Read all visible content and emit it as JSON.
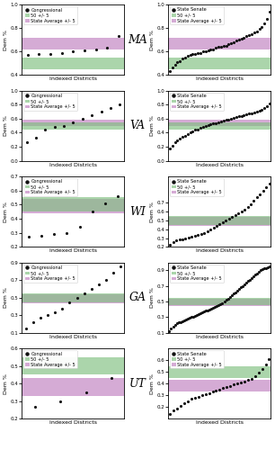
{
  "chart_data": [
    {
      "type": "scatter",
      "xlabel": "Indexed Districts",
      "ylabel": "Dem %",
      "annotations": [
        "MA"
      ],
      "x": [
        1,
        2,
        3,
        4,
        5,
        6,
        7,
        8,
        9
      ],
      "series": [
        {
          "name": "Congressional",
          "color": "#111111",
          "values": [
            0.57,
            0.58,
            0.58,
            0.59,
            0.6,
            0.61,
            0.62,
            0.63,
            0.73
          ]
        }
      ],
      "bands": [
        {
          "name": "50 +/- 5",
          "from": 0.45,
          "to": 0.55,
          "color": "#7fbf7f"
        },
        {
          "name": "State Average +/- 5",
          "from": 0.62,
          "to": 0.72,
          "color": "#bf7fbf"
        }
      ],
      "xlim": [
        0.5,
        9.5
      ],
      "ylim": [
        0.4,
        1.0
      ],
      "yticks": [
        0.4,
        0.6,
        0.8,
        {
          "value": 1,
          "label": "1.0"
        }
      ],
      "legend": "upper left",
      "tick_labels": "y"
    },
    {
      "type": "scatter",
      "xlabel": "Indexed Districts",
      "ylabel": "Dem %",
      "x": [
        1,
        2,
        3,
        4,
        5,
        6,
        7,
        8,
        9,
        10,
        11,
        12,
        13,
        14,
        15,
        16,
        17,
        18,
        19,
        20,
        21,
        22,
        23,
        24,
        25,
        26,
        27,
        28,
        29,
        30,
        31,
        32,
        33,
        34,
        35,
        36,
        37,
        38,
        39,
        40
      ],
      "series": [
        {
          "name": "State Senate",
          "color": "#111111",
          "values": [
            0.43,
            0.46,
            0.49,
            0.51,
            0.52,
            0.54,
            0.55,
            0.56,
            0.57,
            0.58,
            0.58,
            0.59,
            0.59,
            0.6,
            0.6,
            0.61,
            0.62,
            0.62,
            0.63,
            0.64,
            0.64,
            0.65,
            0.65,
            0.66,
            0.67,
            0.68,
            0.69,
            0.7,
            0.71,
            0.72,
            0.73,
            0.74,
            0.75,
            0.76,
            0.77,
            0.79,
            0.81,
            0.84,
            0.88,
            0.94
          ]
        }
      ],
      "bands": [
        {
          "name": "50 +/- 5",
          "from": 0.45,
          "to": 0.55,
          "color": "#7fbf7f"
        },
        {
          "name": "State Average +/- 5",
          "from": 0.62,
          "to": 0.72,
          "color": "#bf7fbf"
        }
      ],
      "xlim": [
        0.5,
        40.5
      ],
      "ylim": [
        0.4,
        1.0
      ],
      "yticks": [
        0.4,
        0.6,
        0.8,
        {
          "value": 1,
          "label": "1.0"
        }
      ],
      "legend": "upper left",
      "tick_labels": "y"
    },
    {
      "type": "scatter",
      "xlabel": "Indexed Districts",
      "ylabel": "Dem %",
      "annotations": [
        "VA"
      ],
      "x": [
        1,
        2,
        3,
        4,
        5,
        6,
        7,
        8,
        9,
        10,
        11
      ],
      "series": [
        {
          "name": "Congressional",
          "color": "#111111",
          "values": [
            0.27,
            0.33,
            0.45,
            0.48,
            0.5,
            0.55,
            0.6,
            0.65,
            0.7,
            0.75,
            0.8
          ]
        }
      ],
      "bands": [
        {
          "name": "50 +/- 5",
          "from": 0.45,
          "to": 0.55,
          "color": "#7fbf7f"
        },
        {
          "name": "State Average +/- 5",
          "from": 0.49,
          "to": 0.59,
          "color": "#bf7fbf"
        }
      ],
      "xlim": [
        0.5,
        11.5
      ],
      "ylim": [
        0.0,
        1.0
      ],
      "yticks": [
        {
          "value": 0,
          "label": "0.0"
        },
        0.2,
        0.4,
        0.6,
        0.8,
        {
          "value": 1,
          "label": "1.0"
        }
      ],
      "legend": "upper left",
      "tick_labels": "y"
    },
    {
      "type": "scatter",
      "xlabel": "Indexed Districts",
      "ylabel": "Dem %",
      "x": [
        1,
        2,
        3,
        4,
        5,
        6,
        7,
        8,
        9,
        10,
        11,
        12,
        13,
        14,
        15,
        16,
        17,
        18,
        19,
        20,
        21,
        22,
        23,
        24,
        25,
        26,
        27,
        28,
        29,
        30,
        31,
        32,
        33,
        34,
        35,
        36,
        37,
        38,
        39,
        40
      ],
      "series": [
        {
          "name": "State Senate",
          "color": "#111111",
          "values": [
            0.17,
            0.21,
            0.26,
            0.29,
            0.32,
            0.34,
            0.36,
            0.38,
            0.4,
            0.42,
            0.44,
            0.45,
            0.47,
            0.48,
            0.5,
            0.51,
            0.52,
            0.53,
            0.54,
            0.55,
            0.56,
            0.57,
            0.58,
            0.59,
            0.6,
            0.61,
            0.62,
            0.63,
            0.64,
            0.65,
            0.66,
            0.67,
            0.68,
            0.69,
            0.7,
            0.71,
            0.73,
            0.75,
            0.78,
            0.82
          ]
        }
      ],
      "bands": [
        {
          "name": "50 +/- 5",
          "from": 0.45,
          "to": 0.55,
          "color": "#7fbf7f"
        },
        {
          "name": "State Average +/- 5",
          "from": 0.49,
          "to": 0.59,
          "color": "#bf7fbf"
        }
      ],
      "xlim": [
        0.5,
        40.5
      ],
      "ylim": [
        0.0,
        1.0
      ],
      "yticks": [
        {
          "value": 0,
          "label": "0.0"
        },
        0.2,
        0.4,
        0.6,
        0.8,
        {
          "value": 1,
          "label": "1.0"
        }
      ],
      "legend": "upper left",
      "tick_labels": "y"
    },
    {
      "type": "scatter",
      "xlabel": "Indexed Districts",
      "ylabel": "Dem %",
      "annotations": [
        "WI"
      ],
      "x": [
        1,
        2,
        3,
        4,
        5,
        6,
        7,
        8
      ],
      "series": [
        {
          "name": "Congressional",
          "color": "#111111",
          "values": [
            0.27,
            0.28,
            0.29,
            0.3,
            0.34,
            0.45,
            0.51,
            0.56
          ]
        }
      ],
      "bands": [
        {
          "name": "50 +/- 5",
          "from": 0.45,
          "to": 0.55,
          "color": "#7fbf7f"
        },
        {
          "name": "State Average +/- 5",
          "from": 0.44,
          "to": 0.54,
          "color": "#bf7fbf"
        }
      ],
      "xlim": [
        0.5,
        8.5
      ],
      "ylim": [
        0.2,
        0.7
      ],
      "yticks": [
        0.2,
        0.3,
        0.4,
        0.5,
        0.6,
        0.7
      ],
      "legend": "upper left",
      "tick_labels": "y"
    },
    {
      "type": "scatter",
      "xlabel": "Indexed Districts",
      "ylabel": "Dem %",
      "x": [
        1,
        2,
        3,
        4,
        5,
        6,
        7,
        8,
        9,
        10,
        11,
        12,
        13,
        14,
        15,
        16,
        17,
        18,
        19,
        20,
        21,
        22,
        23,
        24,
        25,
        26,
        27,
        28,
        29,
        30,
        31,
        32,
        33
      ],
      "series": [
        {
          "name": "State Senate",
          "color": "#111111",
          "values": [
            0.22,
            0.25,
            0.27,
            0.28,
            0.29,
            0.3,
            0.31,
            0.32,
            0.33,
            0.34,
            0.35,
            0.36,
            0.38,
            0.4,
            0.42,
            0.44,
            0.46,
            0.48,
            0.5,
            0.52,
            0.54,
            0.56,
            0.58,
            0.6,
            0.62,
            0.65,
            0.68,
            0.72,
            0.76,
            0.8,
            0.84,
            0.88,
            0.92
          ]
        }
      ],
      "bands": [
        {
          "name": "50 +/- 5",
          "from": 0.45,
          "to": 0.55,
          "color": "#7fbf7f"
        },
        {
          "name": "State Average +/- 5",
          "from": 0.44,
          "to": 0.54,
          "color": "#bf7fbf"
        }
      ],
      "xlim": [
        0.5,
        33.5
      ],
      "ylim": [
        0.2,
        1.0
      ],
      "yticks": [
        0.2,
        0.3,
        0.4,
        0.5,
        0.6,
        0.7
      ],
      "legend": "upper left",
      "tick_labels": "y"
    },
    {
      "type": "scatter",
      "xlabel": "Indexed Districts",
      "ylabel": "Dem %",
      "annotations": [
        "GA"
      ],
      "x": [
        1,
        2,
        3,
        4,
        5,
        6,
        7,
        8,
        9,
        10,
        11,
        12,
        13,
        14
      ],
      "series": [
        {
          "name": "Congressional",
          "color": "#111111",
          "values": [
            0.15,
            0.22,
            0.27,
            0.3,
            0.33,
            0.37,
            0.45,
            0.5,
            0.55,
            0.6,
            0.65,
            0.7,
            0.78,
            0.85
          ]
        }
      ],
      "bands": [
        {
          "name": "50 +/- 5",
          "from": 0.45,
          "to": 0.55,
          "color": "#7fbf7f"
        },
        {
          "name": "State Average +/- 5",
          "from": 0.44,
          "to": 0.54,
          "color": "#bf7fbf"
        }
      ],
      "xlim": [
        0.5,
        14.5
      ],
      "ylim": [
        0.1,
        0.9
      ],
      "yticks": [
        0.1,
        0.3,
        0.5,
        0.7,
        0.9
      ],
      "legend": "upper left",
      "tick_labels": "y"
    },
    {
      "type": "scatter",
      "xlabel": "Indexed Districts",
      "ylabel": "Dem %",
      "x": [
        1,
        2,
        3,
        4,
        5,
        6,
        7,
        8,
        9,
        10,
        11,
        12,
        13,
        14,
        15,
        16,
        17,
        18,
        19,
        20,
        21,
        22,
        23,
        24,
        25,
        26,
        27,
        28,
        29,
        30,
        31,
        32,
        33,
        34,
        35,
        36,
        37,
        38,
        39,
        40,
        41,
        42,
        43,
        44,
        45,
        46,
        47,
        48,
        49,
        50,
        51,
        52,
        53,
        54,
        55,
        56
      ],
      "series": [
        {
          "name": "State Senate",
          "color": "#111111",
          "values": [
            0.12,
            0.15,
            0.18,
            0.2,
            0.22,
            0.23,
            0.24,
            0.25,
            0.26,
            0.27,
            0.28,
            0.29,
            0.3,
            0.31,
            0.32,
            0.33,
            0.34,
            0.35,
            0.36,
            0.37,
            0.38,
            0.39,
            0.4,
            0.41,
            0.42,
            0.43,
            0.44,
            0.45,
            0.46,
            0.48,
            0.5,
            0.52,
            0.54,
            0.56,
            0.58,
            0.6,
            0.62,
            0.64,
            0.66,
            0.68,
            0.7,
            0.72,
            0.74,
            0.76,
            0.78,
            0.8,
            0.82,
            0.84,
            0.86,
            0.88,
            0.9,
            0.91,
            0.92,
            0.93,
            0.94,
            0.95
          ]
        }
      ],
      "bands": [
        {
          "name": "50 +/- 5",
          "from": 0.45,
          "to": 0.55,
          "color": "#7fbf7f"
        },
        {
          "name": "State Average +/- 5",
          "from": 0.44,
          "to": 0.54,
          "color": "#bf7fbf"
        }
      ],
      "xlim": [
        0.5,
        56.5
      ],
      "ylim": [
        0.1,
        1.0
      ],
      "yticks": [
        0.1,
        0.3,
        0.5,
        0.7,
        0.9
      ],
      "legend": "upper left",
      "tick_labels": "y"
    },
    {
      "type": "scatter",
      "xlabel": "Indexed Districts",
      "ylabel": "Dem %",
      "annotations": [
        "UT"
      ],
      "x": [
        1,
        2,
        3,
        4
      ],
      "series": [
        {
          "name": "Congressional",
          "color": "#111111",
          "values": [
            0.27,
            0.3,
            0.35,
            0.43
          ]
        }
      ],
      "bands": [
        {
          "name": "50 +/- 5",
          "from": 0.45,
          "to": 0.55,
          "color": "#7fbf7f"
        },
        {
          "name": "State Average +/- 5",
          "from": 0.33,
          "to": 0.43,
          "color": "#bf7fbf"
        }
      ],
      "xlim": [
        0.5,
        4.5
      ],
      "ylim": [
        0.2,
        0.6
      ],
      "yticks": [
        0.2,
        0.3,
        0.4,
        0.5,
        0.6
      ],
      "legend": "upper left",
      "tick_labels": "y"
    },
    {
      "type": "scatter",
      "xlabel": "Indexed Districts",
      "ylabel": "Dem %",
      "x": [
        1,
        2,
        3,
        4,
        5,
        6,
        7,
        8,
        9,
        10,
        11,
        12,
        13,
        14,
        15,
        16,
        17,
        18,
        19,
        20,
        21,
        22,
        23,
        24,
        25,
        26,
        27,
        28,
        29
      ],
      "series": [
        {
          "name": "State Senate",
          "color": "#111111",
          "values": [
            0.14,
            0.17,
            0.19,
            0.21,
            0.23,
            0.25,
            0.27,
            0.28,
            0.29,
            0.3,
            0.31,
            0.32,
            0.33,
            0.34,
            0.35,
            0.36,
            0.37,
            0.38,
            0.39,
            0.4,
            0.41,
            0.42,
            0.43,
            0.44,
            0.46,
            0.49,
            0.52,
            0.56,
            0.61
          ]
        }
      ],
      "bands": [
        {
          "name": "50 +/- 5",
          "from": 0.45,
          "to": 0.55,
          "color": "#7fbf7f"
        },
        {
          "name": "State Average +/- 5",
          "from": 0.33,
          "to": 0.43,
          "color": "#bf7fbf"
        }
      ],
      "xlim": [
        0.5,
        29.5
      ],
      "ylim": [
        0.1,
        0.7
      ],
      "yticks": [
        0.2,
        0.3,
        0.4,
        0.5,
        0.6
      ],
      "legend": "upper left",
      "tick_labels": "y"
    }
  ]
}
